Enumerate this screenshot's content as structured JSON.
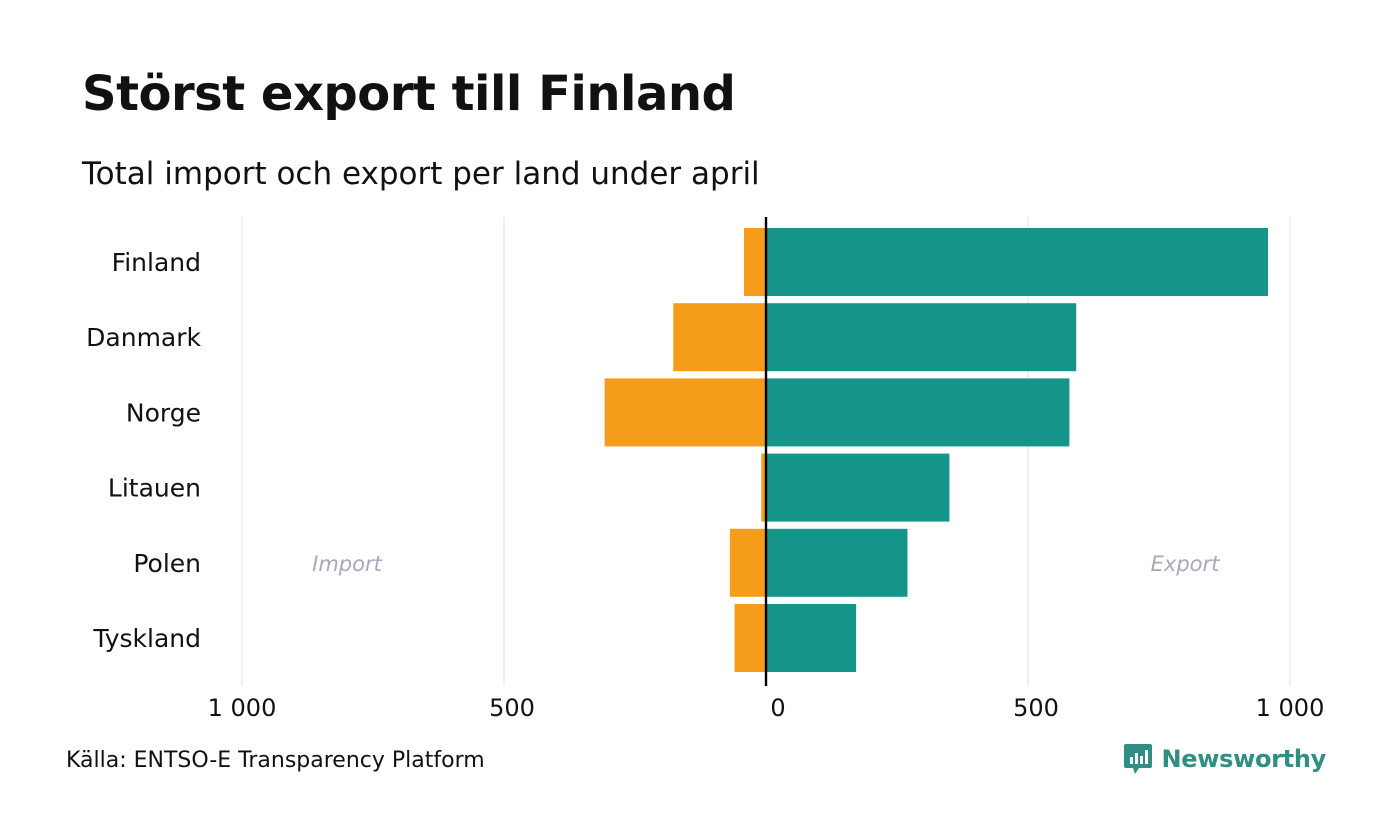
{
  "title": "Störst export till Finland",
  "subtitle": "Total import och export per land under april",
  "source": "Källa: ENTSO-E Transparency Platform",
  "brand": "Newsworthy",
  "colors": {
    "import": "#f59c1b",
    "export": "#15958a",
    "grid": "#e6e6e6",
    "zero_line": "#000000",
    "annotation": "#a8a8b8",
    "brand": "#2f8f83"
  },
  "chart_data": {
    "type": "bar",
    "orientation": "horizontal-diverging",
    "categories": [
      "Finland",
      "Danmark",
      "Norge",
      "Litauen",
      "Polen",
      "Tyskland"
    ],
    "series": [
      {
        "name": "Import",
        "values": [
          -42,
          -177,
          -308,
          -9,
          -69,
          -60
        ]
      },
      {
        "name": "Export",
        "values": [
          958,
          592,
          579,
          350,
          270,
          172
        ]
      }
    ],
    "xlim": [
      -1000,
      1000
    ],
    "xticks": [
      -1000,
      -500,
      0,
      500,
      1000
    ],
    "xtick_labels": [
      "1 000",
      "500",
      "0",
      "500",
      "1 000"
    ],
    "annotations": {
      "left": "Import",
      "right": "Export"
    },
    "grid": true,
    "legend": "none"
  }
}
